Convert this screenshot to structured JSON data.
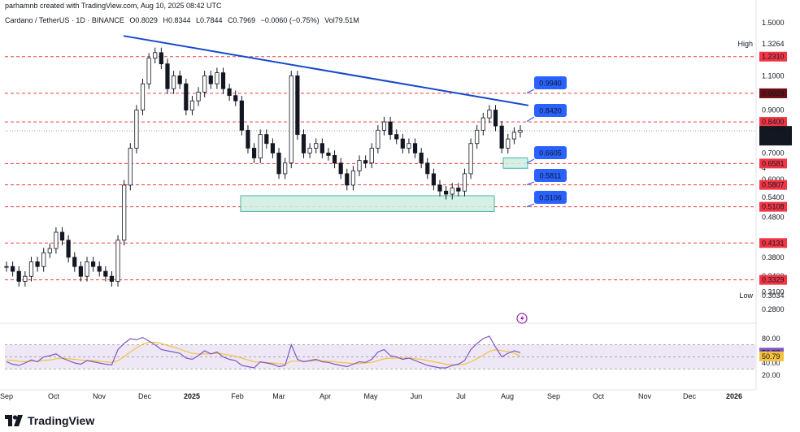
{
  "header": {
    "created_by": "parhamnb created with TradingView.com, Aug 10, 2025 08:42 UTC"
  },
  "symbol": {
    "name": "Cardano / TetherUS · 1D · BINANCE",
    "open": "O0.8029",
    "high": "H0.8344",
    "low": "L0.7844",
    "close": "C0.7969",
    "change": "−0.0060 (−0.75%)",
    "volume": "Vol79.51M"
  },
  "logo": {
    "text": "TradingView",
    "icon": "tradingview-logo-icon"
  },
  "chart_data": [
    {
      "type": "line",
      "description_key": "price",
      "x_ticks": [
        "Sep",
        "Oct",
        "Nov",
        "Dec",
        "2025",
        "Feb",
        "Mar",
        "Apr",
        "May",
        "Jun",
        "Jul",
        "Aug",
        "Sep",
        "Oct",
        "Nov",
        "Dec",
        "2026"
      ],
      "y_scale": "log",
      "y_ticks": [
        "1.5000",
        "1.1000",
        "0.9000",
        "0.7000",
        "0.6000",
        "0.5400",
        "0.4800",
        "0.3800",
        "0.2800"
      ],
      "y_ticks_partial": [
        "4",
        "0.3400",
        "0.3100"
      ],
      "high_label": "High",
      "high_value": "1.3264",
      "low_label": "Low",
      "low_value": "0.3034",
      "current_price": "0.7969",
      "countdown": "15:17:56",
      "levels": [
        "1.2310",
        "0.9929",
        "0.8400",
        "0.6581",
        "0.5807",
        "0.5108",
        "0.4131",
        "0.3329"
      ],
      "callouts": [
        "0.9940",
        "0.8420",
        "0.6605",
        "0.5811",
        "0.5106"
      ],
      "series": [
        {
          "values": [
            0.36,
            0.35,
            0.33,
            0.34,
            0.37,
            0.36,
            0.39,
            0.4,
            0.44,
            0.42,
            0.38,
            0.36,
            0.34,
            0.37,
            0.36,
            0.35,
            0.34,
            0.33,
            0.42,
            0.58,
            0.72,
            0.9,
            1.05,
            1.22,
            1.26,
            1.18,
            1.02,
            1.1,
            1.05,
            0.9,
            0.95,
            1.0,
            1.1,
            1.05,
            1.12,
            1.02,
            0.98,
            0.95,
            0.8,
            0.72,
            0.68,
            0.78,
            0.74,
            0.7,
            0.62,
            0.66,
            1.1,
            0.78,
            0.7,
            0.72,
            0.74,
            0.7,
            0.69,
            0.66,
            0.62,
            0.58,
            0.63,
            0.67,
            0.66,
            0.72,
            0.8,
            0.84,
            0.78,
            0.76,
            0.72,
            0.74,
            0.7,
            0.66,
            0.62,
            0.58,
            0.56,
            0.55,
            0.57,
            0.56,
            0.62,
            0.74,
            0.8,
            0.86,
            0.9,
            0.82,
            0.72,
            0.76,
            0.79,
            0.8
          ]
        }
      ]
    },
    {
      "type": "line",
      "description_key": "rsi",
      "y_ticks": [
        "80.00",
        "20.00"
      ],
      "y_ticks_partial": [
        "40.00"
      ],
      "rsi_value": "56.98",
      "ma_value": "50.79",
      "series": [
        {
          "values": [
            42,
            38,
            36,
            40,
            45,
            42,
            50,
            52,
            55,
            48,
            44,
            40,
            38,
            44,
            42,
            40,
            38,
            37,
            62,
            72,
            80,
            78,
            82,
            76,
            70,
            62,
            60,
            58,
            56,
            48,
            46,
            52,
            60,
            55,
            58,
            50,
            46,
            44,
            36,
            34,
            32,
            42,
            40,
            38,
            34,
            36,
            70,
            46,
            42,
            44,
            46,
            42,
            41,
            38,
            36,
            34,
            38,
            42,
            41,
            46,
            58,
            62,
            52,
            50,
            46,
            48,
            44,
            40,
            36,
            34,
            32,
            32,
            36,
            38,
            44,
            62,
            72,
            80,
            84,
            66,
            50,
            56,
            60,
            57
          ]
        },
        {
          "values": [
            45,
            44,
            43,
            42,
            43,
            43,
            44,
            45,
            47,
            48,
            47,
            46,
            45,
            44,
            44,
            43,
            42,
            41,
            44,
            50,
            58,
            65,
            71,
            74,
            74,
            72,
            69,
            66,
            63,
            59,
            56,
            55,
            55,
            55,
            56,
            55,
            53,
            51,
            48,
            45,
            42,
            41,
            41,
            40,
            39,
            38,
            43,
            43,
            43,
            43,
            44,
            44,
            43,
            42,
            41,
            40,
            39,
            39,
            40,
            41,
            44,
            47,
            48,
            48,
            48,
            48,
            47,
            46,
            44,
            42,
            40,
            38,
            37,
            37,
            38,
            42,
            47,
            53,
            59,
            62,
            60,
            59,
            56,
            51
          ]
        }
      ]
    }
  ],
  "colors": {
    "candle": "#131722",
    "trendline": "#1848cc",
    "level_line": "#e8413f",
    "level_label_bg": "#f23645",
    "level_label_dark": "#6b0d15",
    "callout_bg": "#2962ff",
    "zone_fill": "#cfeee1",
    "zone_stroke": "#26a69a",
    "rsi_line": "#7e57c2",
    "rsi_ma": "#f6c23e",
    "rsi_band": "#ede7f6",
    "price_label_bg": "#131722"
  }
}
